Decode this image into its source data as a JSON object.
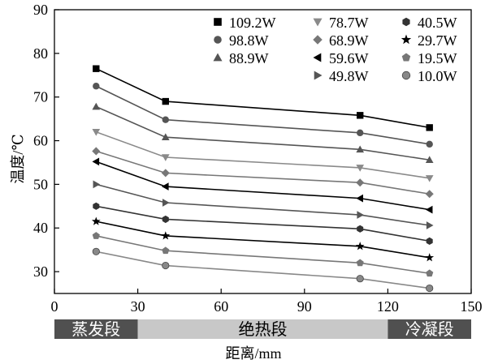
{
  "chart_data": {
    "type": "line",
    "title": "",
    "xlabel": "距离/mm",
    "ylabel": "温度/℃",
    "xlim": [
      0,
      150
    ],
    "ylim": [
      25,
      90
    ],
    "xticks": [
      0,
      30,
      60,
      90,
      120,
      150
    ],
    "yticks": [
      30,
      40,
      50,
      60,
      70,
      80,
      90
    ],
    "grid": false,
    "legend_position": "top-right",
    "x": [
      15,
      40,
      110,
      135
    ],
    "series": [
      {
        "name": "109.2W",
        "marker": "square",
        "color": "#000000",
        "values": [
          76.5,
          69.0,
          65.8,
          63.0
        ]
      },
      {
        "name": "98.8W",
        "marker": "circle",
        "color": "#555555",
        "values": [
          72.5,
          64.8,
          61.8,
          59.2
        ]
      },
      {
        "name": "88.9W",
        "marker": "triangle-up",
        "color": "#555555",
        "values": [
          67.8,
          60.8,
          58.0,
          55.6
        ]
      },
      {
        "name": "78.7W",
        "marker": "triangle-down",
        "color": "#8a8a8a",
        "values": [
          62.0,
          56.2,
          53.8,
          51.4
        ]
      },
      {
        "name": "68.9W",
        "marker": "diamond",
        "color": "#777777",
        "values": [
          57.6,
          52.6,
          50.4,
          47.8
        ]
      },
      {
        "name": "59.6W",
        "marker": "triangle-left",
        "color": "#000000",
        "values": [
          55.2,
          49.5,
          46.8,
          44.2
        ]
      },
      {
        "name": "49.8W",
        "marker": "triangle-right",
        "color": "#555555",
        "values": [
          50.0,
          45.8,
          43.0,
          40.6
        ]
      },
      {
        "name": "40.5W",
        "marker": "hexagon",
        "color": "#333333",
        "values": [
          45.0,
          42.0,
          39.8,
          37.0
        ]
      },
      {
        "name": "29.7W",
        "marker": "star",
        "color": "#000000",
        "values": [
          41.5,
          38.2,
          35.8,
          33.2
        ]
      },
      {
        "name": "19.5W",
        "marker": "pentagon",
        "color": "#777777",
        "values": [
          38.2,
          34.8,
          32.0,
          29.6
        ]
      },
      {
        "name": "10.0W",
        "marker": "sphere",
        "color": "#888888",
        "values": [
          34.6,
          31.4,
          28.4,
          26.2
        ]
      }
    ],
    "bands": [
      {
        "label": "蒸发段",
        "from": 0,
        "to": 30,
        "color": "#505050",
        "text_color": "#ffffff"
      },
      {
        "label": "绝热段",
        "from": 30,
        "to": 120,
        "color": "#c8c8c8",
        "text_color": "#000000"
      },
      {
        "label": "冷凝段",
        "from": 120,
        "to": 150,
        "color": "#505050",
        "text_color": "#ffffff"
      }
    ]
  }
}
